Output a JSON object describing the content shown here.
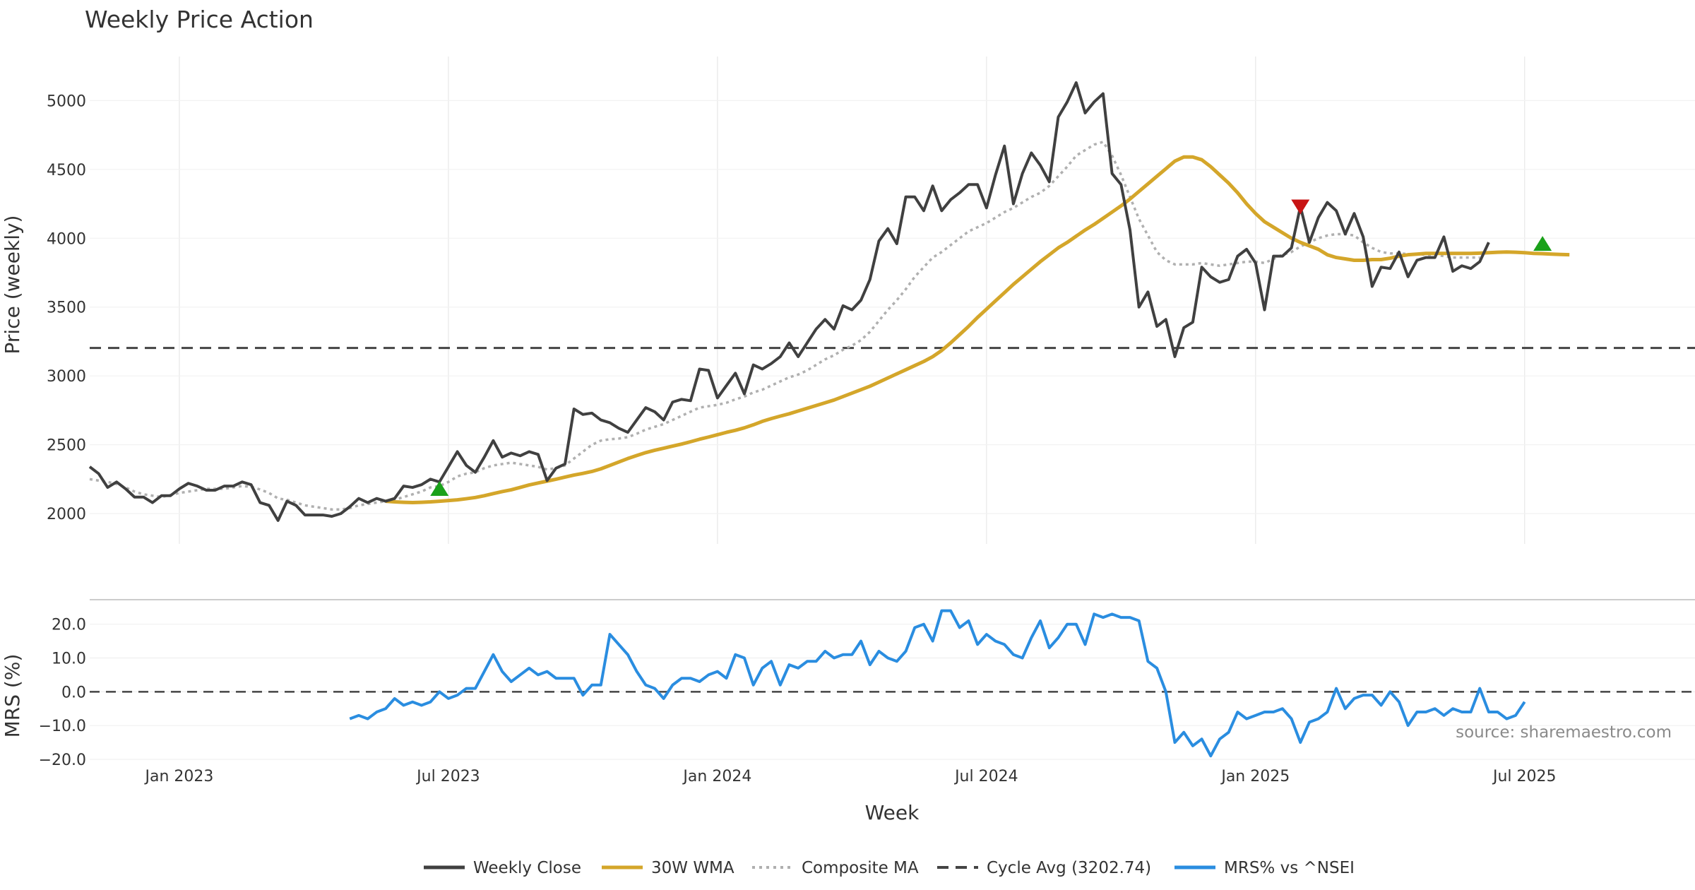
{
  "chart_data": [
    {
      "type": "line",
      "title": "Weekly Price Action",
      "xlabel": "Week",
      "ylabel": "Price (weekly)",
      "ylim": [
        1780,
        5320
      ],
      "yticks": [
        2000,
        2500,
        3000,
        3500,
        4000,
        4500,
        5000
      ],
      "grid": true,
      "x_ticks": [
        "Jan 2023",
        "Jul 2023",
        "Jan 2024",
        "Jul 2024",
        "Jan 2025",
        "Jul 2025"
      ],
      "x_tick_week_index": [
        10,
        40,
        70,
        100,
        130,
        160
      ],
      "x_range_weeks": [
        0,
        179
      ],
      "series": [
        {
          "name": "Weekly Close",
          "color": "#404040",
          "start_index": 0,
          "values": [
            2340,
            2290,
            2190,
            2230,
            2180,
            2120,
            2120,
            2080,
            2130,
            2130,
            2180,
            2220,
            2200,
            2170,
            2170,
            2200,
            2200,
            2230,
            2210,
            2080,
            2060,
            1950,
            2090,
            2060,
            1990,
            1990,
            1990,
            1980,
            2000,
            2050,
            2110,
            2080,
            2110,
            2090,
            2110,
            2200,
            2190,
            2210,
            2250,
            2230,
            2340,
            2450,
            2350,
            2300,
            2410,
            2530,
            2410,
            2440,
            2420,
            2450,
            2430,
            2240,
            2330,
            2360,
            2760,
            2720,
            2730,
            2680,
            2660,
            2620,
            2590,
            2680,
            2770,
            2740,
            2680,
            2810,
            2830,
            2820,
            3050,
            3040,
            2840,
            2930,
            3020,
            2870,
            3080,
            3050,
            3090,
            3140,
            3240,
            3140,
            3240,
            3340,
            3410,
            3340,
            3510,
            3480,
            3550,
            3700,
            3980,
            4070,
            3960,
            4300,
            4300,
            4200,
            4380,
            4200,
            4280,
            4330,
            4390,
            4390,
            4220,
            4460,
            4670,
            4250,
            4470,
            4620,
            4530,
            4410,
            4880,
            4990,
            5130,
            4910,
            4990,
            5050,
            4470,
            4390,
            4060,
            3500,
            3610,
            3360,
            3410,
            3140,
            3350,
            3390,
            3790,
            3720,
            3680,
            3700,
            3870,
            3920,
            3820,
            3480,
            3870,
            3870,
            3930,
            4230,
            3970,
            4150,
            4260,
            4200,
            4030,
            4180,
            4010,
            3650,
            3790,
            3780,
            3900,
            3720,
            3840,
            3860,
            3860,
            4010,
            3760,
            3800,
            3780,
            3830,
            3970
          ]
        },
        {
          "name": "30W WMA",
          "color": "#d4a62a",
          "start_index": 33,
          "values": [
            2090,
            2085,
            2082,
            2080,
            2082,
            2085,
            2090,
            2095,
            2100,
            2108,
            2117,
            2130,
            2145,
            2160,
            2173,
            2190,
            2208,
            2222,
            2236,
            2250,
            2265,
            2280,
            2292,
            2306,
            2325,
            2350,
            2375,
            2400,
            2422,
            2443,
            2460,
            2475,
            2490,
            2505,
            2522,
            2540,
            2556,
            2573,
            2590,
            2605,
            2623,
            2645,
            2670,
            2690,
            2708,
            2725,
            2745,
            2765,
            2785,
            2805,
            2825,
            2850,
            2875,
            2900,
            2925,
            2955,
            2985,
            3015,
            3045,
            3075,
            3105,
            3140,
            3185,
            3240,
            3300,
            3360,
            3425,
            3485,
            3545,
            3605,
            3665,
            3720,
            3775,
            3830,
            3880,
            3930,
            3970,
            4015,
            4060,
            4100,
            4145,
            4190,
            4235,
            4285,
            4340,
            4395,
            4450,
            4505,
            4560,
            4590,
            4590,
            4570,
            4520,
            4460,
            4400,
            4330,
            4250,
            4180,
            4120,
            4080,
            4040,
            4000,
            3970,
            3945,
            3920,
            3880,
            3860,
            3850,
            3840,
            3840,
            3845,
            3845,
            3855,
            3870,
            3880,
            3885,
            3890,
            3890,
            3890,
            3890,
            3890,
            3890,
            3892,
            3895,
            3898,
            3900,
            3898,
            3895,
            3890,
            3888,
            3885,
            3882,
            3880
          ]
        },
        {
          "name": "Composite MA",
          "color": "#b0b0b0",
          "start_index": 0,
          "dashed": true,
          "values": [
            2250,
            2240,
            2230,
            2215,
            2190,
            2160,
            2140,
            2130,
            2120,
            2135,
            2150,
            2160,
            2170,
            2180,
            2180,
            2180,
            2190,
            2200,
            2195,
            2175,
            2150,
            2110,
            2100,
            2080,
            2060,
            2050,
            2040,
            2030,
            2030,
            2040,
            2060,
            2070,
            2080,
            2090,
            2100,
            2120,
            2140,
            2160,
            2190,
            2200,
            2230,
            2270,
            2290,
            2300,
            2330,
            2350,
            2360,
            2370,
            2360,
            2350,
            2340,
            2320,
            2330,
            2350,
            2400,
            2450,
            2500,
            2530,
            2540,
            2545,
            2555,
            2580,
            2610,
            2630,
            2650,
            2680,
            2710,
            2740,
            2770,
            2780,
            2790,
            2805,
            2830,
            2850,
            2880,
            2900,
            2930,
            2960,
            2990,
            3010,
            3040,
            3080,
            3120,
            3150,
            3190,
            3220,
            3260,
            3320,
            3400,
            3480,
            3550,
            3630,
            3720,
            3790,
            3860,
            3900,
            3950,
            4000,
            4050,
            4080,
            4110,
            4150,
            4190,
            4220,
            4260,
            4300,
            4330,
            4380,
            4450,
            4520,
            4600,
            4640,
            4680,
            4700,
            4600,
            4460,
            4300,
            4140,
            4020,
            3900,
            3840,
            3810,
            3810,
            3810,
            3820,
            3810,
            3800,
            3810,
            3820,
            3830,
            3830,
            3820,
            3850,
            3880,
            3900,
            3940,
            3970,
            4000,
            4020,
            4030,
            4030,
            4020,
            3970,
            3930,
            3900,
            3890,
            3890,
            3885,
            3885,
            3880,
            3880,
            3870,
            3860,
            3860,
            3860,
            3860
          ]
        },
        {
          "name": "Cycle Avg (3202.74)",
          "color": "#444444",
          "dashed": true,
          "value": 3202.74
        }
      ],
      "markers": [
        {
          "type": "buy",
          "week_index": 39,
          "value": 2180,
          "color": "#1aa11a"
        },
        {
          "type": "sell",
          "week_index": 135,
          "value": 4230,
          "color": "#c81414"
        },
        {
          "type": "buy",
          "week_index": 162,
          "value": 3960,
          "color": "#1aa11a"
        }
      ],
      "annotation": "source: sharemaestro.com"
    },
    {
      "type": "line",
      "title": "",
      "xlabel": "Week",
      "ylabel": "MRS (%)",
      "ylim": [
        -20,
        26
      ],
      "yticks": [
        -20.0,
        -10.0,
        0.0,
        10.0,
        20.0
      ],
      "ytick_labels": [
        "−20.0",
        "−10.0",
        "0.0",
        "10.0",
        "20.0"
      ],
      "series": [
        {
          "name": "MRS% vs ^NSEI",
          "color": "#2a8de0",
          "start_index": 29,
          "values": [
            -8,
            -7,
            -8,
            -6,
            -5,
            -2,
            -4,
            -3,
            -4,
            -3,
            0,
            -2,
            -1,
            1,
            1,
            6,
            11,
            6,
            3,
            5,
            7,
            5,
            6,
            4,
            4,
            4,
            -1,
            2,
            2,
            17,
            14,
            11,
            6,
            2,
            1,
            -2,
            2,
            4,
            4,
            3,
            5,
            6,
            4,
            11,
            10,
            2,
            7,
            9,
            2,
            8,
            7,
            9,
            9,
            12,
            10,
            11,
            11,
            15,
            8,
            12,
            10,
            9,
            12,
            19,
            20,
            15,
            24,
            24,
            19,
            21,
            14,
            17,
            15,
            14,
            11,
            10,
            16,
            21,
            13,
            16,
            20,
            20,
            14,
            23,
            22,
            23,
            22,
            22,
            21,
            9,
            7,
            0,
            -15,
            -12,
            -16,
            -14,
            -19,
            -14,
            -12,
            -6,
            -8,
            -7,
            -6,
            -6,
            -5,
            -8,
            -15,
            -9,
            -8,
            -6,
            1,
            -5,
            -2,
            -1,
            -1,
            -4,
            0,
            -3,
            -10,
            -6,
            -6,
            -5,
            -7,
            -5,
            -6,
            -6,
            1,
            -6,
            -6,
            -8,
            -7,
            -3
          ]
        },
        {
          "name": "Zero",
          "color": "#444444",
          "dashed": true,
          "value": 0
        }
      ]
    }
  ],
  "legend": [
    {
      "label": "Weekly Close",
      "color": "#404040",
      "style": "solid"
    },
    {
      "label": "30W WMA",
      "color": "#d4a62a",
      "style": "solid"
    },
    {
      "label": "Composite MA",
      "color": "#b0b0b0",
      "style": "dotted"
    },
    {
      "label": "Cycle Avg (3202.74)",
      "color": "#444444",
      "style": "dashed"
    },
    {
      "label": "MRS% vs ^NSEI",
      "color": "#2a8de0",
      "style": "solid"
    }
  ]
}
